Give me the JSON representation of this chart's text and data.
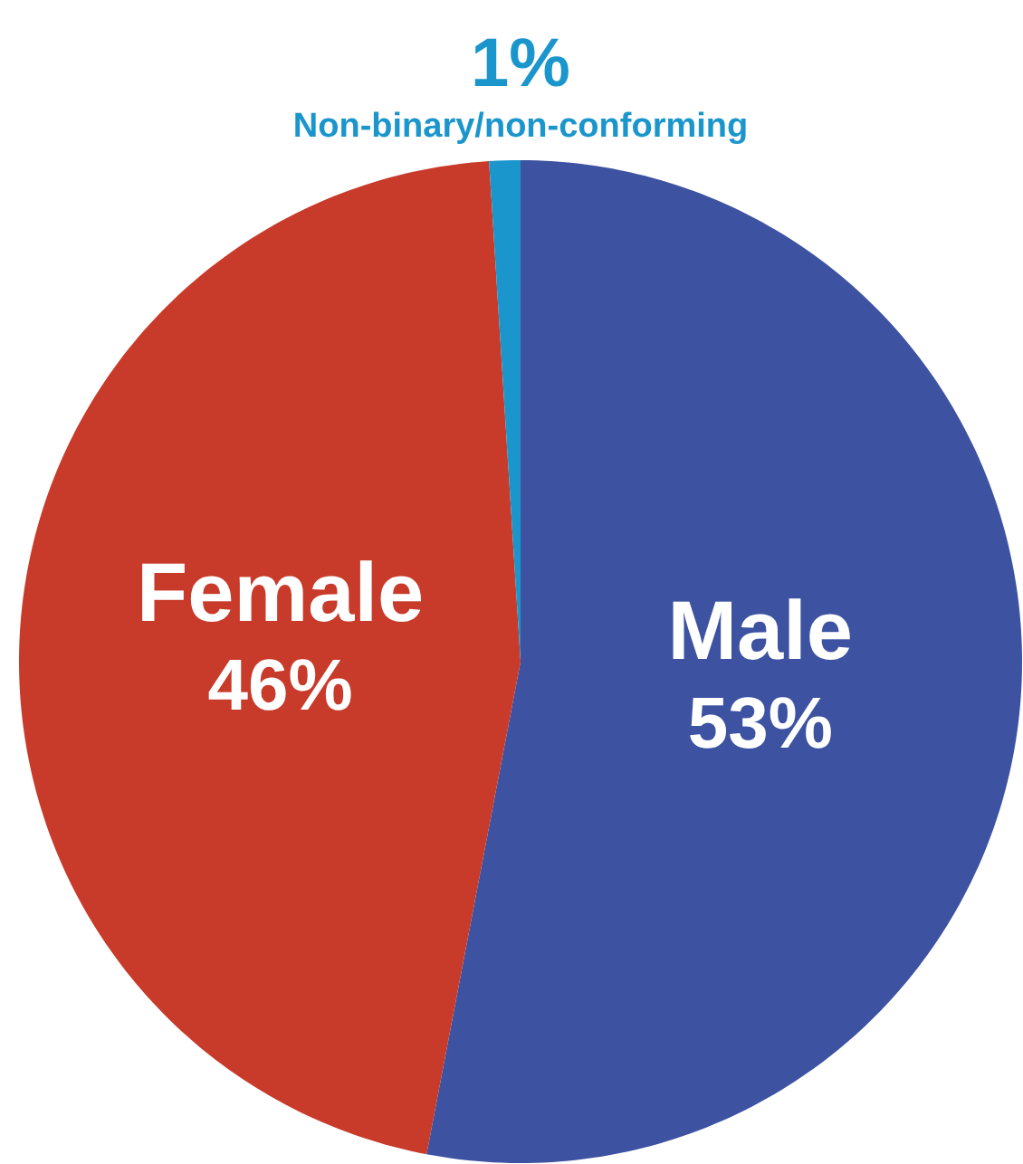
{
  "chart_data": {
    "type": "pie",
    "categories": [
      "Male",
      "Female",
      "Non-binary/non-conforming"
    ],
    "values": [
      53,
      46,
      1
    ],
    "value_labels": [
      "53%",
      "46%",
      "1%"
    ],
    "colors": [
      "#3d52a1",
      "#c83a2a",
      "#1b96cc"
    ]
  }
}
